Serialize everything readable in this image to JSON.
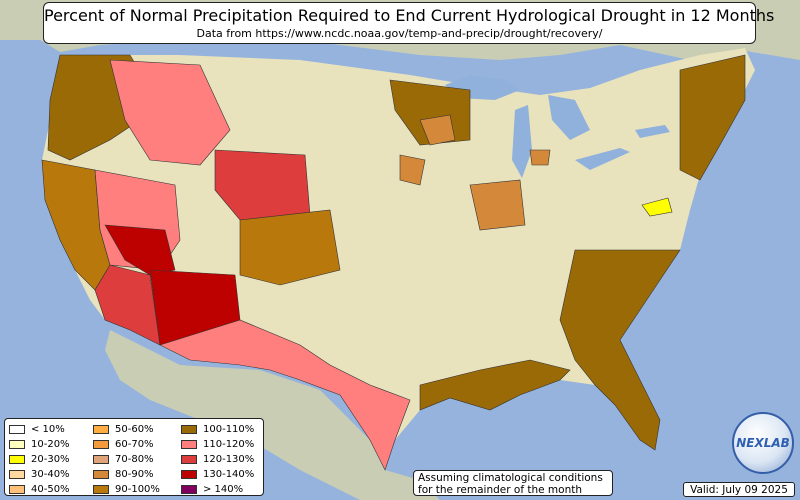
{
  "title": "Percent of Normal Precipitation Required to End Current Hydrological Drought in 12 Months",
  "subtitle": "Data from https://www.ncdc.noaa.gov/temp-and-precip/drought/recovery/",
  "note_lines": [
    "Assuming climatological conditions",
    "for the remainder of the month"
  ],
  "valid_text": "Valid: July 09 2025",
  "logo_text": "NEXLAB",
  "colors": {
    "ocean": "#95b3dd",
    "land_normal": "#e8e2bd",
    "outside_land": "#c9cdb4",
    "great_lakes": "#8fb1db"
  },
  "legend": [
    {
      "label": "< 10%",
      "color": "#ffffff"
    },
    {
      "label": "10-20%",
      "color": "#ffffc0"
    },
    {
      "label": "20-30%",
      "color": "#ffff00"
    },
    {
      "label": "30-40%",
      "color": "#ffd9a0"
    },
    {
      "label": "40-50%",
      "color": "#ffc07a"
    },
    {
      "label": "50-60%",
      "color": "#ffae42"
    },
    {
      "label": "60-70%",
      "color": "#f59a3c"
    },
    {
      "label": "70-80%",
      "color": "#dfa47a"
    },
    {
      "label": "80-90%",
      "color": "#d4893a"
    },
    {
      "label": "90-100%",
      "color": "#b8780c"
    },
    {
      "label": "100-110%",
      "color": "#9a6a06"
    },
    {
      "label": "110-120%",
      "color": "#ff7f7f"
    },
    {
      "label": "120-130%",
      "color": "#dd3d3d"
    },
    {
      "label": "130-140%",
      "color": "#bd0000"
    },
    {
      "label": "> 140%",
      "color": "#800060"
    }
  ],
  "regions": [
    {
      "name": "pacific-northwest",
      "category": "100-110%",
      "color": "#9a6a06"
    },
    {
      "name": "northern-california",
      "category": "90-100%",
      "color": "#b8780c"
    },
    {
      "name": "nevada-interior",
      "category": "110-120%",
      "color": "#ff7f7f"
    },
    {
      "name": "southern-nevada-utah",
      "category": "130-140%",
      "color": "#bd0000"
    },
    {
      "name": "southern-california",
      "category": "120-130%",
      "color": "#dd3d3d"
    },
    {
      "name": "arizona-nm-core",
      "category": "130-140%",
      "color": "#bd0000"
    },
    {
      "name": "southwest-texas",
      "category": "110-120%",
      "color": "#ff7f7f"
    },
    {
      "name": "colorado-wyoming",
      "category": "120-130%",
      "color": "#dd3d3d"
    },
    {
      "name": "montana-idaho",
      "category": "110-120%",
      "color": "#ff7f7f"
    },
    {
      "name": "central-plains",
      "category": "90-100%",
      "color": "#b8780c"
    },
    {
      "name": "southeast-coast",
      "category": "100-110%",
      "color": "#9a6a06"
    },
    {
      "name": "upper-midwest",
      "category": "100-110%",
      "color": "#9a6a06"
    },
    {
      "name": "northeast",
      "category": "100-110%",
      "color": "#9a6a06"
    },
    {
      "name": "maryland",
      "category": "20-30%",
      "color": "#ffff00"
    },
    {
      "name": "midwest-patches",
      "category": "80-90%",
      "color": "#d4893a"
    },
    {
      "name": "gulf-coast",
      "category": "100-110%",
      "color": "#9a6a06"
    }
  ]
}
